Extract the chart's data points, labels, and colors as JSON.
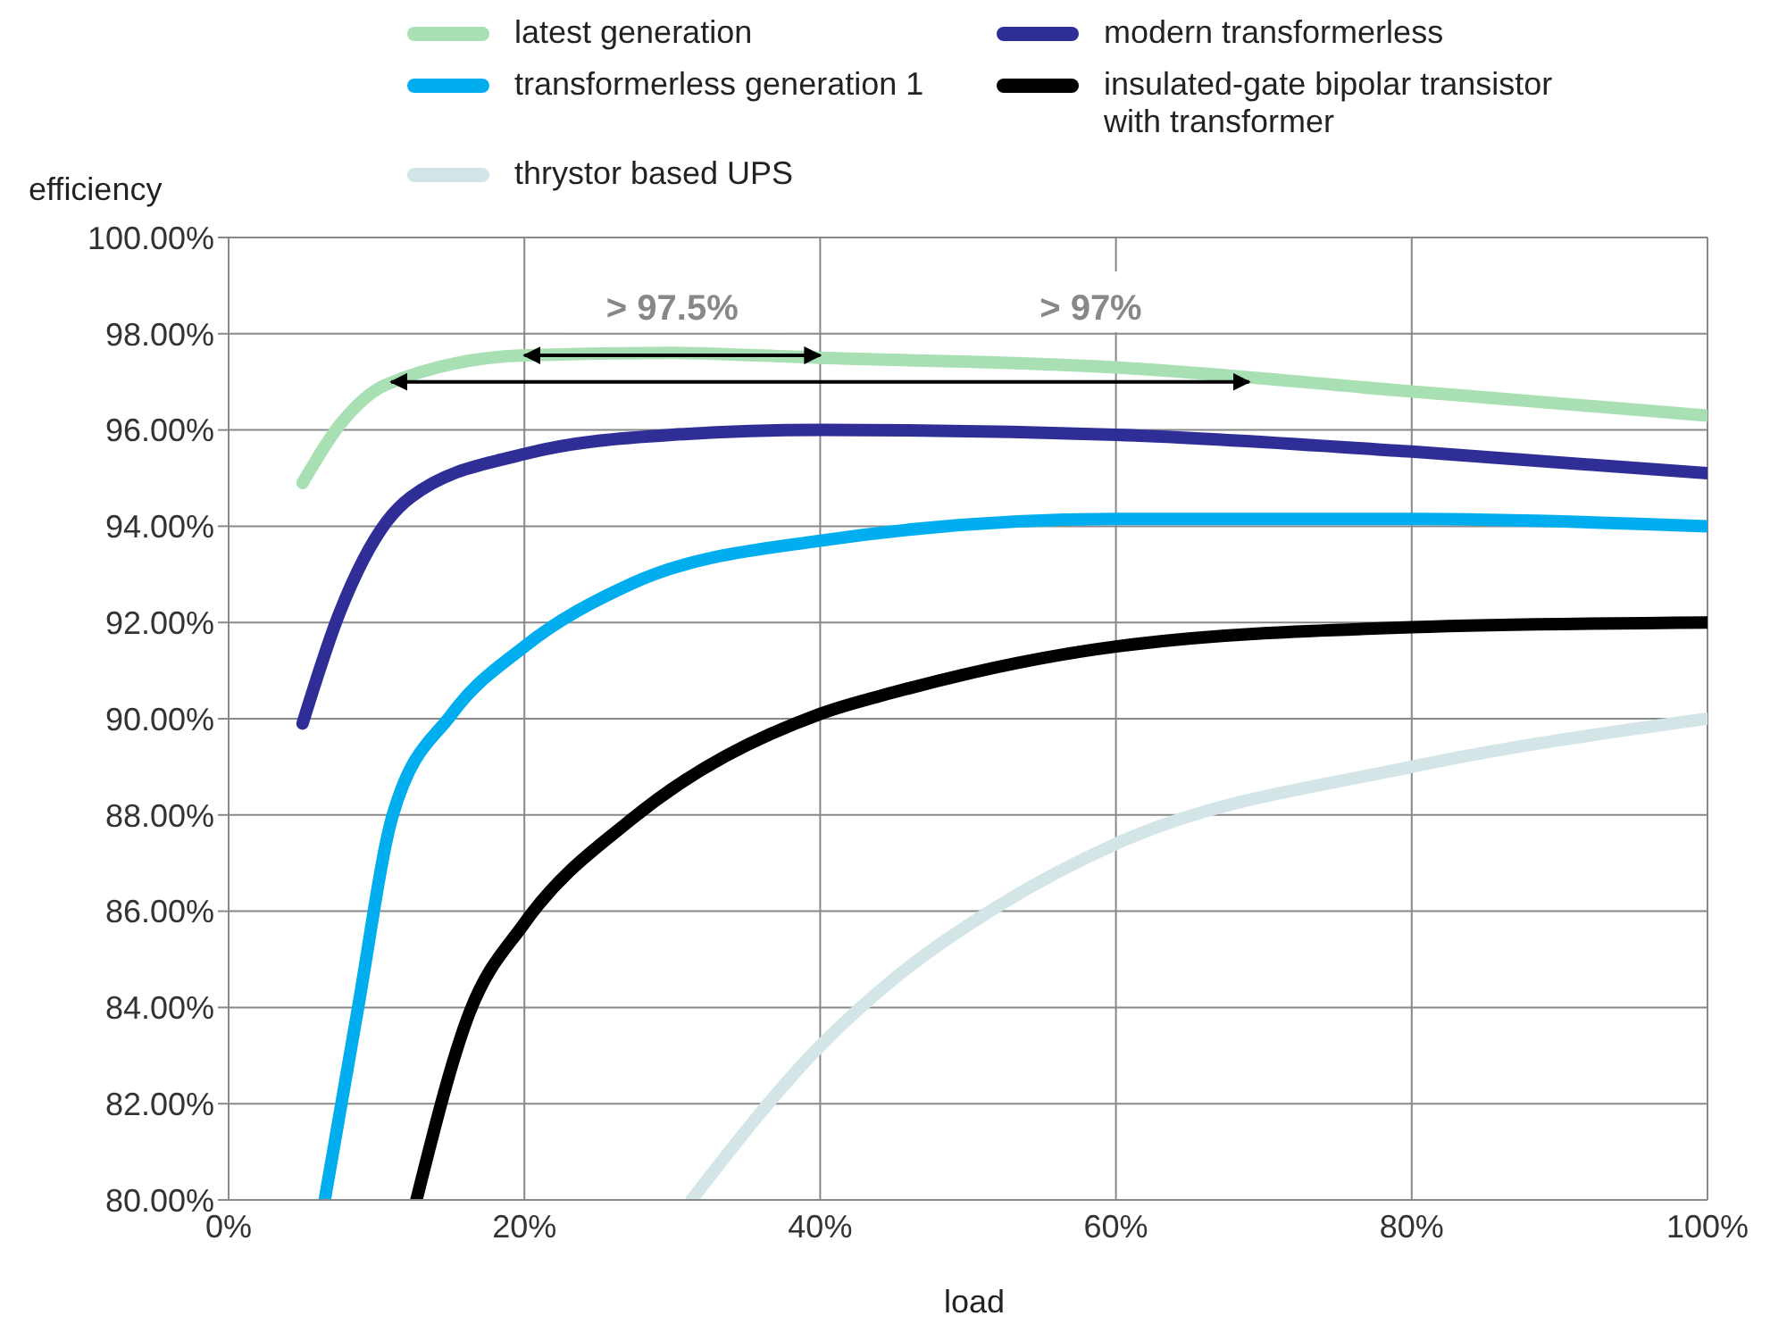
{
  "chart_data": {
    "type": "line",
    "xlabel": "load",
    "ylabel": "efficiency",
    "legend": "top",
    "grid": true,
    "line_style": "solid",
    "marker": "none",
    "xlim": [
      0,
      100
    ],
    "xticks": [
      {
        "value": 0,
        "label": "0%"
      },
      {
        "value": 20,
        "label": "20%"
      },
      {
        "value": 40,
        "label": "40%"
      },
      {
        "value": 60,
        "label": "60%"
      },
      {
        "value": 80,
        "label": "80%"
      },
      {
        "value": 100,
        "label": "100%"
      }
    ],
    "ylim": [
      80,
      100
    ],
    "yticks": [
      {
        "value": 80,
        "label": "80.00%"
      },
      {
        "value": 82,
        "label": "82.00%"
      },
      {
        "value": 84,
        "label": "84.00%"
      },
      {
        "value": 86,
        "label": "86.00%"
      },
      {
        "value": 88,
        "label": "88.00%"
      },
      {
        "value": 90,
        "label": "90.00%"
      },
      {
        "value": 92,
        "label": "92.00%"
      },
      {
        "value": 94,
        "label": "94.00%"
      },
      {
        "value": 96,
        "label": "96.00%"
      },
      {
        "value": 98,
        "label": "98.00%"
      },
      {
        "value": 100,
        "label": "100.00%"
      }
    ],
    "series": [
      {
        "name": "latest generation",
        "color": "#a8e0b4",
        "x": [
          5,
          7.5,
          10.7,
          20,
          30,
          40,
          60,
          80,
          100
        ],
        "values": [
          94.9,
          96.1,
          96.95,
          97.55,
          97.6,
          97.5,
          97.3,
          96.8,
          96.3
        ]
      },
      {
        "name": "modern transformerless",
        "color": "#2e2e96",
        "x": [
          5,
          7.5,
          10.7,
          12.3,
          20,
          30,
          40,
          60,
          80,
          100
        ],
        "values": [
          89.9,
          92.2,
          94.1,
          94.6,
          95.5,
          95.9,
          96,
          95.9,
          95.55,
          95.1
        ]
      },
      {
        "name": "transformerless generation 1",
        "color": "#00aeef",
        "x": [
          6.5,
          8.7,
          11.1,
          15.1,
          20,
          27.2,
          40,
          60,
          80,
          100
        ],
        "values": [
          80,
          83.9,
          88,
          90.1,
          91.5,
          92.8,
          93.7,
          94.15,
          94.15,
          94
        ]
      },
      {
        "name": "insulated-gate bipolar transistor with transformer",
        "color": "#000000",
        "x": [
          12.7,
          16.3,
          20,
          27.2,
          40,
          45,
          60,
          80,
          100
        ],
        "values": [
          80,
          83.9,
          85.75,
          87.9,
          90.1,
          90.55,
          91.5,
          91.9,
          92
        ]
      },
      {
        "name": "thrystor based UPS",
        "color": "#d3e5e6",
        "x": [
          31.3,
          40,
          45,
          52,
          60,
          80,
          100
        ],
        "values": [
          80,
          83.2,
          84.6,
          86.1,
          87.4,
          89,
          90
        ]
      }
    ],
    "annotations": [
      "> 97.5%",
      "> 97%"
    ]
  }
}
